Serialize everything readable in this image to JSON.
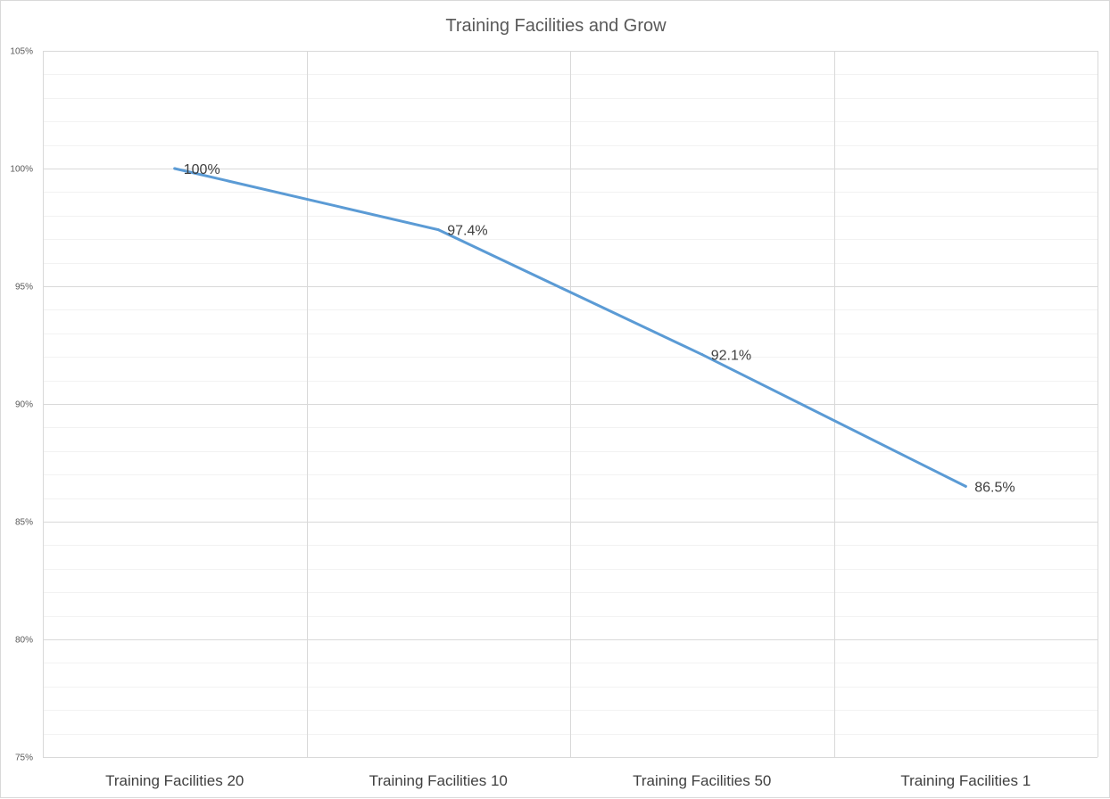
{
  "chart_data": {
    "type": "line",
    "title": "Training Facilities and Grow",
    "xlabel": "",
    "ylabel": "",
    "categories": [
      "Training Facilities 20",
      "Training Facilities 10",
      "Training Facilities 50",
      "Training Facilities 1"
    ],
    "series": [
      {
        "values": [
          100,
          97.4,
          92.1,
          86.5
        ],
        "data_labels": [
          "100%",
          "97.4%",
          "92.1%",
          "86.5%"
        ],
        "color": "#5b9bd5"
      }
    ],
    "ylim": [
      75,
      105
    ],
    "y_ticks": [
      75,
      80,
      85,
      90,
      95,
      100,
      105
    ],
    "y_tick_labels": [
      "75%",
      "80%",
      "85%",
      "90%",
      "95%",
      "100%",
      "105%"
    ],
    "y_minor_step": 1,
    "grid": true,
    "vertical_grid": true,
    "legend": "none",
    "colors": {
      "major_grid": "#d9d9d9",
      "minor_grid": "#f2f2f2",
      "line": "#5b9bd5"
    }
  }
}
